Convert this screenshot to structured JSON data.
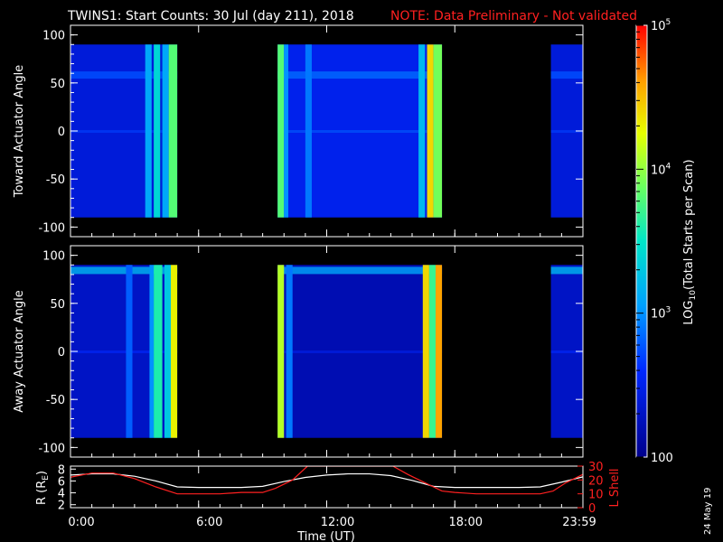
{
  "chart_data": {
    "type": "heatmap",
    "title": "TWINS1: Start Counts: 30 Jul (day 211), 2018",
    "note": "NOTE: Data Preliminary - Not validated",
    "date_stamp": "24 May 19",
    "xlabel": "Time (UT)",
    "x_ticks": [
      "0:00",
      "6:00",
      "12:00",
      "18:00",
      "23:59"
    ],
    "x_range_hours": [
      0,
      24
    ],
    "panels": [
      {
        "ylabel": "Toward Actuator Angle",
        "ylim": [
          -110,
          110
        ],
        "y_ticks": [
          "100",
          "50",
          "0",
          "-50",
          "-100"
        ],
        "data_y_range": [
          -90,
          90
        ],
        "segments": [
          {
            "start": 0.0,
            "end": 5.0,
            "level": 2.4
          },
          {
            "start": 9.7,
            "end": 17.4,
            "level": 2.5
          },
          {
            "start": 22.5,
            "end": 24.0,
            "level": 2.4
          }
        ],
        "bright_bands": [
          {
            "start": 3.5,
            "end": 3.8,
            "level": 3.1
          },
          {
            "start": 3.9,
            "end": 4.2,
            "level": 3.4
          },
          {
            "start": 4.3,
            "end": 4.6,
            "level": 3.1
          },
          {
            "start": 4.6,
            "end": 5.0,
            "level": 3.8
          },
          {
            "start": 9.7,
            "end": 10.0,
            "level": 3.8
          },
          {
            "start": 10.0,
            "end": 10.2,
            "level": 3.0
          },
          {
            "start": 11.0,
            "end": 11.3,
            "level": 2.9
          },
          {
            "start": 16.3,
            "end": 16.6,
            "level": 3.2
          },
          {
            "start": 16.7,
            "end": 17.0,
            "level": 4.4
          },
          {
            "start": 17.0,
            "end": 17.4,
            "level": 3.9
          }
        ]
      },
      {
        "ylabel": "Away Actuator Angle",
        "ylim": [
          -110,
          110
        ],
        "y_ticks": [
          "100",
          "50",
          "0",
          "-50",
          "-100"
        ],
        "data_y_range": [
          -90,
          90
        ],
        "segments": [
          {
            "start": 0.0,
            "end": 5.0,
            "level": 2.3
          },
          {
            "start": 9.7,
            "end": 17.4,
            "level": 2.2
          },
          {
            "start": 22.5,
            "end": 24.0,
            "level": 2.3
          }
        ],
        "bright_bands": [
          {
            "start": 2.6,
            "end": 2.9,
            "level": 2.8
          },
          {
            "start": 3.7,
            "end": 3.9,
            "level": 3.0
          },
          {
            "start": 3.9,
            "end": 4.3,
            "level": 3.6
          },
          {
            "start": 4.4,
            "end": 4.7,
            "level": 3.3
          },
          {
            "start": 4.7,
            "end": 5.0,
            "level": 4.3
          },
          {
            "start": 9.7,
            "end": 10.0,
            "level": 4.1
          },
          {
            "start": 10.1,
            "end": 10.4,
            "level": 2.9
          },
          {
            "start": 16.5,
            "end": 16.8,
            "level": 4.4
          },
          {
            "start": 16.8,
            "end": 17.1,
            "level": 3.7
          },
          {
            "start": 17.1,
            "end": 17.4,
            "level": 4.6
          }
        ]
      }
    ],
    "colorbar": {
      "label": "LOG10(Total Starts per Scan)",
      "label_main": "LOG",
      "label_sub": "10",
      "label_rest": "(Total Starts per Scan)",
      "range_log": [
        2,
        5
      ],
      "ticks": [
        {
          "base": "10",
          "exp": "5",
          "value": 5
        },
        {
          "base": "10",
          "exp": "4",
          "value": 4
        },
        {
          "base": "10",
          "exp": "3",
          "value": 3
        },
        {
          "base": "100",
          "exp": "",
          "value": 2
        }
      ],
      "stops": [
        {
          "v": 0.0,
          "color": "#00008c"
        },
        {
          "v": 0.2,
          "color": "#0028ff"
        },
        {
          "v": 0.35,
          "color": "#00a0ff"
        },
        {
          "v": 0.5,
          "color": "#00e6c8"
        },
        {
          "v": 0.62,
          "color": "#64ff64"
        },
        {
          "v": 0.75,
          "color": "#e6ff00"
        },
        {
          "v": 0.87,
          "color": "#ffa000"
        },
        {
          "v": 1.0,
          "color": "#ff0000"
        }
      ]
    },
    "orbit_panel": {
      "left_label": "R (RE)",
      "left_label_main": "R (R",
      "left_label_sub": "E",
      "left_label_end": ")",
      "right_label": "L Shell",
      "left_ticks": [
        "8",
        "6",
        "4",
        "2"
      ],
      "left_range": [
        1.5,
        8.5
      ],
      "right_ticks": [
        "30",
        "20",
        "10",
        "0"
      ],
      "right_range": [
        0,
        30
      ],
      "r_series": {
        "name": "R",
        "color": "#ffffff",
        "hours": [
          0,
          1,
          2,
          3,
          4,
          5,
          6,
          7,
          8,
          9,
          10,
          11,
          12,
          13,
          14,
          15,
          16,
          17,
          18,
          19,
          20,
          21,
          22,
          23,
          24
        ],
        "values": [
          7.0,
          7.2,
          7.2,
          6.8,
          6.0,
          5.0,
          4.9,
          4.9,
          4.9,
          5.1,
          5.9,
          6.6,
          7.0,
          7.2,
          7.2,
          6.9,
          6.1,
          5.1,
          4.9,
          4.9,
          4.9,
          4.9,
          5.0,
          5.8,
          6.7
        ]
      },
      "l_series": {
        "name": "L Shell",
        "color": "#ff2020",
        "hours": [
          0,
          1,
          2,
          3,
          4,
          5,
          6,
          7,
          8,
          9,
          9.6,
          10.4,
          11.1,
          15.1,
          15.8,
          16.6,
          17.4,
          18,
          19,
          20,
          21,
          22,
          22.6,
          23.2,
          24
        ],
        "values": [
          22,
          25,
          25,
          21,
          15,
          10,
          10,
          10,
          11,
          11,
          14,
          20,
          30,
          30,
          24,
          18,
          12,
          11,
          10,
          10,
          10,
          10,
          12,
          18,
          24
        ]
      }
    }
  }
}
